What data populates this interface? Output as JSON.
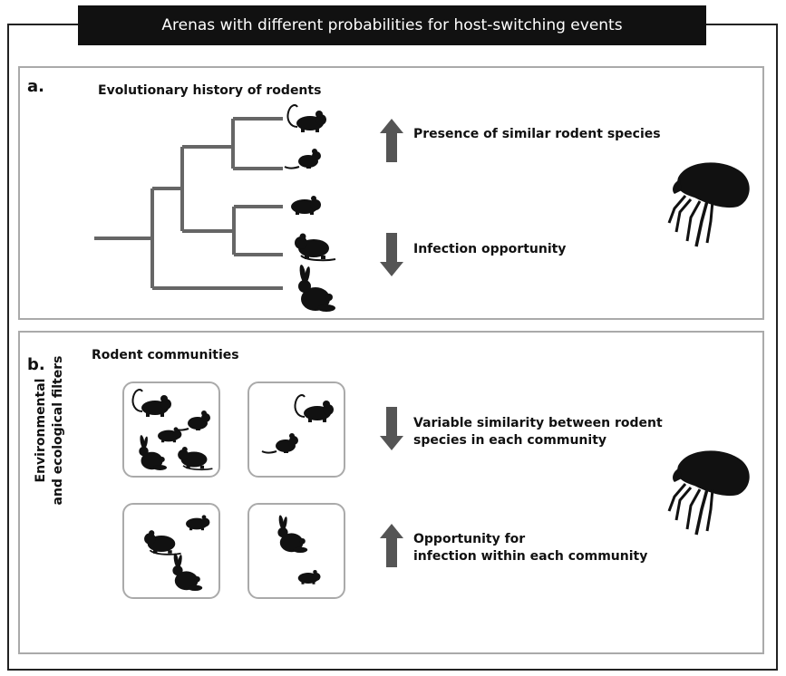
{
  "title": "Arenas with different probabilities for host-switching events",
  "panel_a": {
    "letter": "a.",
    "heading": "Evolutionary history of rodents",
    "label_up": "Presence of similar rodent species",
    "label_down": "Infection opportunity"
  },
  "panel_b": {
    "letter": "b.",
    "heading": "Rodent communities",
    "side_label_line1": "Environmental",
    "side_label_line2": "and ecological filters",
    "label_down_line1": "Variable similarity between rodent",
    "label_down_line2": "species in each community",
    "label_up_line1": "Opportunity for",
    "label_up_line2": "infection within each community"
  },
  "colors": {
    "arrow": "#555555",
    "tree": "#666666",
    "silhouette": "#111111",
    "border": "#aaaaaa"
  },
  "icons": [
    "mouse-icon",
    "rat-icon",
    "hamster-icon",
    "rabbit-icon",
    "flea-icon",
    "arrow-up-icon",
    "arrow-down-icon"
  ]
}
